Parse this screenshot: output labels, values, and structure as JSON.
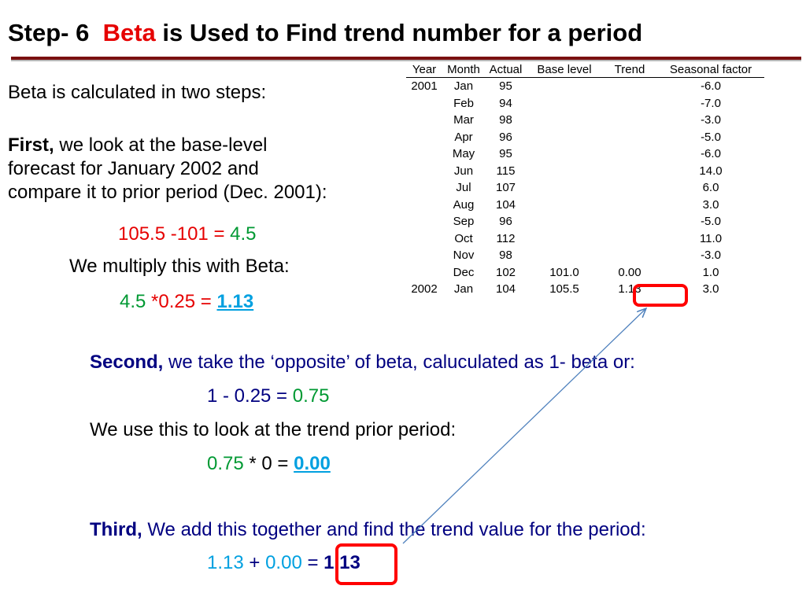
{
  "title": {
    "prefix": "Step- 6",
    "beta": "Beta",
    "suffix": "is Used to Find trend number for a period"
  },
  "intro": "Beta is calculated in two steps:",
  "first": {
    "label": "First,",
    "line1": "we look at the base-level",
    "line2": "forecast for January 2002 and",
    "line3": "compare it to prior period (Dec. 2001):",
    "calc": {
      "a": "105.5",
      "b": "-101",
      "eq": "=",
      "result": "4.5"
    },
    "multiply_text": "We multiply this with Beta:",
    "calc2": {
      "a": "4.5",
      "op": "*",
      "b": "0.25",
      "eq": "=",
      "result": "1.13"
    }
  },
  "second": {
    "label": "Second,",
    "text": "we take the ‘opposite’ of beta, caluculated as 1- beta or:",
    "calc": {
      "expr": "1 - 0.25 =",
      "result": "0.75"
    },
    "use_text": "We use this to look at the trend prior period:",
    "calc2": {
      "a": "0.75",
      "rest": "* 0 =",
      "result": "0.00"
    }
  },
  "third": {
    "label": "Third,",
    "text": "We add this together and find the trend value for the period:",
    "calc": {
      "a": "1.13",
      "plus": "+",
      "b": "0.00",
      "eq": "=",
      "result": "1.13"
    }
  },
  "table": {
    "headers": [
      "Year",
      "Month",
      "Actual",
      "Base level",
      "Trend",
      "Seasonal factor"
    ],
    "rows": [
      [
        "2001",
        "Jan",
        "95",
        "",
        "",
        "-6.0"
      ],
      [
        "",
        "Feb",
        "94",
        "",
        "",
        "-7.0"
      ],
      [
        "",
        "Mar",
        "98",
        "",
        "",
        "-3.0"
      ],
      [
        "",
        "Apr",
        "96",
        "",
        "",
        "-5.0"
      ],
      [
        "",
        "May",
        "95",
        "",
        "",
        "-6.0"
      ],
      [
        "",
        "Jun",
        "115",
        "",
        "",
        "14.0"
      ],
      [
        "",
        "Jul",
        "107",
        "",
        "",
        "6.0"
      ],
      [
        "",
        "Aug",
        "104",
        "",
        "",
        "3.0"
      ],
      [
        "",
        "Sep",
        "96",
        "",
        "",
        "-5.0"
      ],
      [
        "",
        "Oct",
        "112",
        "",
        "",
        "11.0"
      ],
      [
        "",
        "Nov",
        "98",
        "",
        "",
        "-3.0"
      ],
      [
        "",
        "Dec",
        "102",
        "101.0",
        "0.00",
        "1.0"
      ],
      [
        "2002",
        "Jan",
        "104",
        "105.5",
        "1.13",
        "3.0"
      ]
    ]
  },
  "colors": {
    "red": "#e60000",
    "green": "#009933",
    "cyan": "#00a0e0",
    "navy": "#000080",
    "rule": "#7a1010",
    "arrow": "#4f81bd"
  }
}
